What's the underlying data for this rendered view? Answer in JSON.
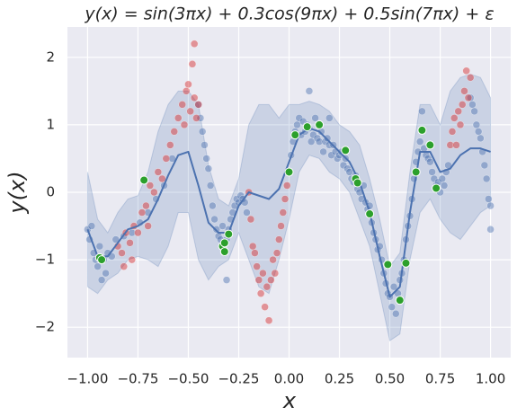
{
  "chart_data": {
    "type": "scatter",
    "title": "y(x) = sin(3πx) + 0.3cos(9πx) + 0.5sin(7πx) + ε",
    "x_label": "x",
    "y_label": "y(x)",
    "xlim": [
      -1.1,
      1.1
    ],
    "ylim": [
      -2.45,
      2.45
    ],
    "xticks": [
      {
        "value": -1,
        "label": "−1.00"
      },
      {
        "value": -0.75,
        "label": "−0.75"
      },
      {
        "value": -0.5,
        "label": "−0.50"
      },
      {
        "value": -0.25,
        "label": "−0.25"
      },
      {
        "value": 0,
        "label": "0.00"
      },
      {
        "value": 0.25,
        "label": "0.25"
      },
      {
        "value": 0.5,
        "label": "0.50"
      },
      {
        "value": 0.75,
        "label": "0.75"
      },
      {
        "value": 1,
        "label": "1.00"
      }
    ],
    "yticks": [
      {
        "value": -2,
        "label": "−2"
      },
      {
        "value": -1,
        "label": "−1"
      },
      0,
      1,
      2
    ],
    "grid": true,
    "band": {
      "color": "#4c72b0",
      "x": [
        -1,
        -0.95,
        -0.9,
        -0.85,
        -0.8,
        -0.75,
        -0.7,
        -0.65,
        -0.6,
        -0.55,
        -0.5,
        -0.45,
        -0.4,
        -0.35,
        -0.3,
        -0.25,
        -0.2,
        -0.15,
        -0.1,
        -0.05,
        0,
        0.05,
        0.1,
        0.15,
        0.2,
        0.25,
        0.3,
        0.35,
        0.4,
        0.45,
        0.5,
        0.55,
        0.6,
        0.65,
        0.7,
        0.75,
        0.8,
        0.85,
        0.9,
        0.95,
        1
      ],
      "upper": [
        0.3,
        -0.4,
        -0.6,
        -0.3,
        -0.1,
        -0.05,
        0.3,
        0.9,
        1.3,
        1.5,
        1.5,
        1.3,
        0.4,
        -0.1,
        -0.2,
        0.2,
        1.0,
        1.3,
        1.3,
        1.1,
        1.3,
        1.3,
        1.35,
        1.3,
        1.2,
        1.0,
        0.9,
        0.7,
        0.2,
        -0.4,
        -1.1,
        -0.9,
        0.3,
        1.3,
        1.3,
        1.0,
        1.5,
        1.7,
        1.75,
        1.7,
        1.4
      ],
      "lower": [
        -1.4,
        -1.5,
        -1.3,
        -1.2,
        -1.0,
        -0.95,
        -1.0,
        -1.1,
        -0.8,
        -0.3,
        -0.3,
        -1.0,
        -1.3,
        -1.1,
        -1.0,
        -0.6,
        -1.0,
        -1.4,
        -1.5,
        -1.0,
        -0.4,
        0.3,
        0.55,
        0.5,
        0.3,
        0.2,
        0.0,
        -0.4,
        -0.8,
        -1.5,
        -2.2,
        -2.1,
        -1.0,
        -0.3,
        -0.1,
        -0.4,
        -0.6,
        -0.7,
        -0.5,
        -0.3,
        -0.2
      ]
    },
    "series": [
      {
        "color": "#4c72b0",
        "x": [
          -1,
          -0.99,
          -0.98,
          -0.97,
          -0.96,
          -0.95,
          -0.94,
          -0.93,
          -0.92,
          -0.91,
          -0.9,
          -0.88,
          -0.86,
          -0.82,
          -0.78,
          -0.74,
          -0.7,
          -0.66,
          -0.62,
          -0.58,
          -0.45,
          -0.44,
          -0.43,
          -0.42,
          -0.41,
          -0.4,
          -0.39,
          -0.38,
          -0.37,
          -0.36,
          -0.35,
          -0.34,
          -0.33,
          -0.32,
          -0.31,
          -0.3,
          -0.29,
          -0.28,
          -0.27,
          -0.26,
          -0.25,
          -0.24,
          -0.23,
          -0.22,
          -0.21,
          -0.31,
          0,
          0.01,
          0.02,
          0.03,
          0.04,
          0.05,
          0.06,
          0.07,
          0.08,
          0.09,
          0.1,
          0.11,
          0.12,
          0.13,
          0.14,
          0.15,
          0.16,
          0.17,
          0.18,
          0.19,
          0.2,
          0.21,
          0.22,
          0.23,
          0.24,
          0.25,
          0.26,
          0.27,
          0.28,
          0.29,
          0.3,
          0.31,
          0.32,
          0.33,
          0.34,
          0.35,
          0.36,
          0.37,
          0.38,
          0.39,
          0.4,
          0.41,
          0.42,
          0.43,
          0.44,
          0.45,
          0.46,
          0.47,
          0.48,
          0.49,
          0.5,
          0.51,
          0.52,
          0.53,
          0.54,
          0.55,
          0.56,
          0.57,
          0.58,
          0.59,
          0.6,
          0.61,
          0.62,
          0.63,
          0.64,
          0.65,
          0.66,
          0.67,
          0.68,
          0.69,
          0.7,
          0.71,
          0.72,
          0.73,
          0.74,
          0.75,
          0.76,
          0.77,
          0.78,
          0.79,
          0.2,
          0.1,
          0.9,
          0.91,
          0.92,
          0.93,
          0.94,
          0.95,
          0.96,
          0.97,
          0.98,
          0.99,
          1,
          1
        ],
        "values": [
          -0.55,
          -0.7,
          -0.5,
          -0.9,
          -1.0,
          -1.1,
          -0.8,
          -1.3,
          -1.0,
          -1.2,
          -0.9,
          -0.95,
          -0.7,
          -0.65,
          -0.6,
          -0.45,
          -0.3,
          -0.1,
          0.1,
          0.5,
          1.3,
          1.1,
          0.9,
          0.7,
          0.5,
          0.35,
          0.1,
          -0.2,
          -0.4,
          -0.55,
          -0.65,
          -0.7,
          -0.5,
          -0.9,
          -0.7,
          -0.55,
          -0.4,
          -0.3,
          -0.2,
          -0.1,
          -0.15,
          -0.05,
          -0.1,
          -0.15,
          -0.3,
          -1.3,
          0.3,
          0.55,
          0.75,
          0.9,
          1.0,
          1.1,
          0.85,
          1.05,
          0.9,
          1.0,
          0.95,
          0.75,
          0.85,
          1.1,
          0.8,
          0.75,
          0.9,
          0.6,
          0.75,
          0.8,
          0.7,
          0.55,
          0.7,
          0.6,
          0.5,
          0.55,
          0.6,
          0.4,
          0.5,
          0.35,
          0.3,
          0.2,
          0.15,
          0.25,
          0.05,
          0.0,
          -0.1,
          0.1,
          -0.15,
          -0.25,
          -0.2,
          -0.45,
          -0.6,
          -0.7,
          -0.85,
          -0.8,
          -1.0,
          -1.2,
          -1.35,
          -1.5,
          -1.55,
          -1.7,
          -1.4,
          -1.8,
          -1.5,
          -1.3,
          -1.2,
          -1.0,
          -0.7,
          -0.5,
          -0.35,
          -0.1,
          0.2,
          0.45,
          0.6,
          0.75,
          1.2,
          0.65,
          0.55,
          0.5,
          0.45,
          0.3,
          0.2,
          0.1,
          0.15,
          0.0,
          0.2,
          0.1,
          0.3,
          0.4,
          1.1,
          1.5,
          1.4,
          1.3,
          1.2,
          1.0,
          0.9,
          0.8,
          0.6,
          0.4,
          0.2,
          -0.1,
          -0.2,
          -0.55
        ]
      },
      {
        "color": "#d62728",
        "x": [
          -0.85,
          -0.83,
          -0.81,
          -0.79,
          -0.77,
          -0.75,
          -0.73,
          -0.71,
          -0.69,
          -0.67,
          -0.65,
          -0.63,
          -0.61,
          -0.59,
          -0.57,
          -0.55,
          -0.53,
          -0.51,
          -0.5,
          -0.49,
          -0.48,
          -0.47,
          -0.46,
          -0.45,
          -0.82,
          -0.78,
          -0.7,
          -0.52,
          -0.47,
          -0.2,
          -0.19,
          -0.18,
          -0.17,
          -0.16,
          -0.15,
          -0.14,
          -0.13,
          -0.12,
          -0.11,
          -0.1,
          -0.09,
          -0.08,
          -0.07,
          -0.06,
          -0.05,
          -0.04,
          -0.03,
          -0.02,
          -0.01,
          0.8,
          0.81,
          0.82,
          0.83,
          0.84,
          0.85,
          0.86,
          0.87,
          0.88,
          0.89,
          0.9
        ],
        "values": [
          -0.8,
          -0.9,
          -0.6,
          -0.75,
          -0.5,
          -0.6,
          -0.3,
          -0.2,
          0.1,
          0.0,
          0.3,
          0.2,
          0.5,
          0.7,
          0.9,
          1.1,
          1.3,
          1.5,
          1.6,
          1.2,
          1.9,
          1.4,
          1.1,
          1.3,
          -1.1,
          -1.0,
          -0.5,
          1.0,
          2.2,
          0.0,
          -0.4,
          -0.8,
          -0.9,
          -1.1,
          -1.3,
          -1.5,
          -1.2,
          -1.7,
          -1.4,
          -1.9,
          -1.3,
          -1.0,
          -1.2,
          -0.9,
          -0.7,
          -0.5,
          -0.3,
          -0.1,
          0.1,
          0.7,
          0.9,
          1.1,
          0.7,
          1.2,
          1.0,
          1.3,
          1.5,
          1.8,
          1.4,
          1.7
        ]
      },
      {
        "color": "#2ca02c",
        "x": [
          -0.94,
          -0.93,
          -0.72,
          -0.33,
          -0.32,
          -0.32,
          -0.3,
          0.0,
          0.03,
          0.09,
          0.15,
          0.28,
          0.33,
          0.34,
          0.4,
          0.49,
          0.55,
          0.58,
          0.63,
          0.66,
          0.7,
          0.73
        ],
        "values": [
          -0.97,
          -1.0,
          0.18,
          -0.8,
          -0.88,
          -0.75,
          -0.62,
          0.3,
          0.85,
          0.97,
          1.0,
          0.62,
          0.2,
          0.14,
          -0.32,
          -1.07,
          -1.6,
          -1.05,
          0.3,
          0.92,
          0.7,
          0.06
        ]
      }
    ],
    "line": {
      "color": "#4c72b0",
      "x": [
        -1,
        -0.95,
        -0.9,
        -0.85,
        -0.8,
        -0.75,
        -0.7,
        -0.65,
        -0.6,
        -0.55,
        -0.5,
        -0.45,
        -0.4,
        -0.35,
        -0.3,
        -0.25,
        -0.2,
        -0.15,
        -0.1,
        -0.05,
        0,
        0.05,
        0.1,
        0.15,
        0.2,
        0.25,
        0.3,
        0.35,
        0.4,
        0.45,
        0.5,
        0.55,
        0.6,
        0.65,
        0.7,
        0.75,
        0.8,
        0.85,
        0.9,
        0.95,
        1
      ],
      "values": [
        -0.55,
        -0.95,
        -0.95,
        -0.75,
        -0.55,
        -0.5,
        -0.4,
        -0.1,
        0.25,
        0.55,
        0.6,
        0.1,
        -0.45,
        -0.6,
        -0.6,
        -0.2,
        0.0,
        -0.05,
        -0.1,
        0.05,
        0.45,
        0.85,
        0.95,
        0.9,
        0.75,
        0.6,
        0.45,
        0.15,
        -0.3,
        -0.95,
        -1.55,
        -1.4,
        -0.3,
        0.6,
        0.6,
        0.3,
        0.35,
        0.55,
        0.65,
        0.65,
        0.6
      ]
    }
  }
}
